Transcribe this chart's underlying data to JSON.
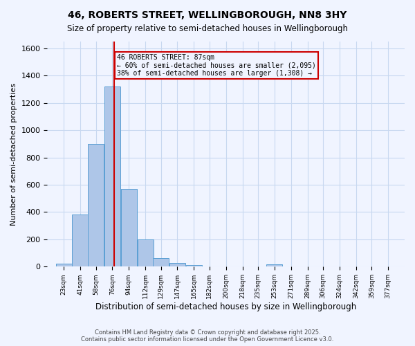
{
  "title": "46, ROBERTS STREET, WELLINGBOROUGH, NN8 3HY",
  "subtitle": "Size of property relative to semi-detached houses in Wellingborough",
  "xlabel": "Distribution of semi-detached houses by size in Wellingborough",
  "ylabel": "Number of semi-detached properties",
  "bin_labels": [
    "23sqm",
    "41sqm",
    "58sqm",
    "76sqm",
    "94sqm",
    "112sqm",
    "129sqm",
    "147sqm",
    "165sqm",
    "182sqm",
    "200sqm",
    "218sqm",
    "235sqm",
    "253sqm",
    "271sqm",
    "289sqm",
    "306sqm",
    "324sqm",
    "342sqm",
    "359sqm",
    "377sqm"
  ],
  "bin_edges": [
    23,
    41,
    58,
    76,
    94,
    112,
    129,
    147,
    165,
    182,
    200,
    218,
    235,
    253,
    271,
    289,
    306,
    324,
    342,
    359,
    377
  ],
  "bar_heights": [
    20,
    380,
    900,
    1320,
    570,
    200,
    65,
    28,
    12,
    0,
    0,
    0,
    0,
    15,
    0,
    0,
    0,
    0,
    0,
    0
  ],
  "bar_color": "#aec6e8",
  "bar_edge_color": "#5a9fd4",
  "property_size": 87,
  "property_line_color": "#cc0000",
  "annotation_text": "46 ROBERTS STREET: 87sqm\n← 60% of semi-detached houses are smaller (2,095)\n38% of semi-detached houses are larger (1,308) →",
  "annotation_box_color": "#cc0000",
  "ylim": [
    0,
    1650
  ],
  "yticks": [
    0,
    200,
    400,
    600,
    800,
    1000,
    1200,
    1400,
    1600
  ],
  "footer_line1": "Contains HM Land Registry data © Crown copyright and database right 2025.",
  "footer_line2": "Contains public sector information licensed under the Open Government Licence v3.0.",
  "bg_color": "#f0f4ff",
  "grid_color": "#c8d8f0"
}
